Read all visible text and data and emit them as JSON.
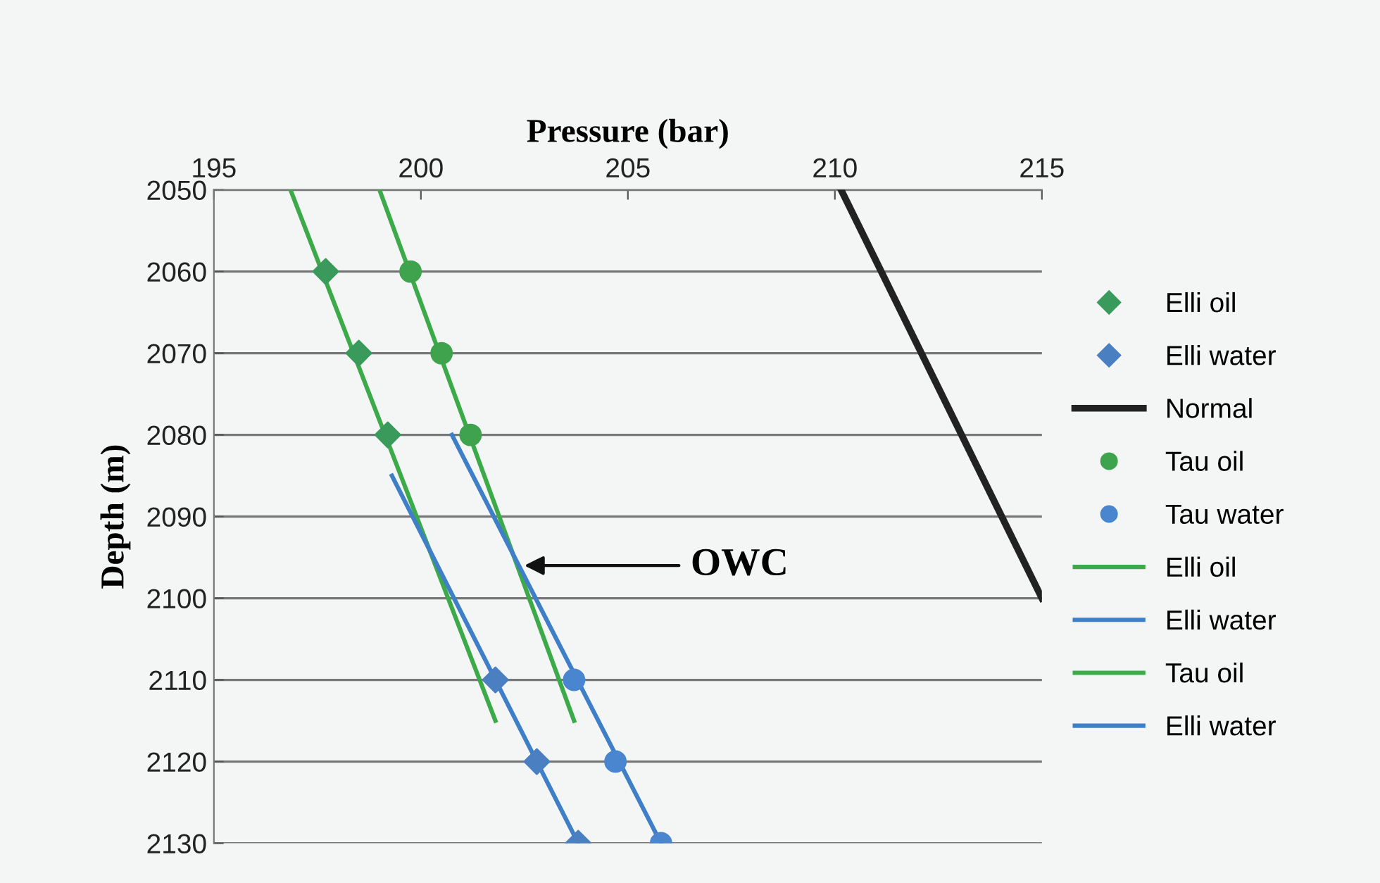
{
  "chart_data": {
    "type": "scatter",
    "xlabel": "Pressure (bar)",
    "ylabel": "Depth (m)",
    "xlim": [
      195,
      215
    ],
    "xticks": [
      195,
      200,
      205,
      210,
      215
    ],
    "ylim": [
      2130,
      2050
    ],
    "yticks": [
      2050,
      2060,
      2070,
      2080,
      2090,
      2100,
      2110,
      2120,
      2130
    ],
    "grid": "y",
    "legend": "right",
    "series": [
      {
        "name": "Elli oil",
        "marker": "diamond",
        "color": "#3a9a5c",
        "x": [
          197.7,
          198.5,
          199.2
        ],
        "values": [
          2060,
          2070,
          2080
        ]
      },
      {
        "name": "Elli water",
        "marker": "diamond",
        "color": "#4a7fc1",
        "x": [
          201.8,
          202.8,
          203.8
        ],
        "values": [
          2110,
          2120,
          2130
        ]
      },
      {
        "name": "Normal",
        "type": "line",
        "marker": "none",
        "color": "#222222",
        "x": [
          210.15,
          215
        ],
        "values": [
          2050,
          2100
        ]
      },
      {
        "name": "Tau oil",
        "marker": "circle",
        "color": "#3fa34d",
        "x": [
          199.75,
          200.5,
          201.2
        ],
        "values": [
          2060,
          2070,
          2080
        ]
      },
      {
        "name": "Tau water",
        "marker": "circle",
        "color": "#4a86cf",
        "x": [
          203.7,
          204.7,
          205.8
        ],
        "values": [
          2110,
          2120,
          2130
        ]
      },
      {
        "name": "Elli oil",
        "type": "line",
        "marker": "none",
        "color": "#3daa4a",
        "x": [
          196.85,
          201.8
        ],
        "values": [
          2050,
          2115
        ]
      },
      {
        "name": "Elli water",
        "type": "line",
        "marker": "none",
        "color": "#3f7fc8",
        "x": [
          199.3,
          203.8
        ],
        "values": [
          2085,
          2130
        ]
      },
      {
        "name": "Tau oil",
        "type": "line",
        "marker": "none",
        "color": "#3daa4a",
        "x": [
          199.0,
          203.7
        ],
        "values": [
          2050,
          2115
        ]
      },
      {
        "name": "Elli water",
        "type": "line",
        "marker": "none",
        "color": "#3f7fc8",
        "x": [
          200.75,
          205.8
        ],
        "values": [
          2080,
          2130
        ]
      }
    ],
    "annotations": [
      {
        "text": "OWC",
        "x": 202.5,
        "y": 2096
      }
    ]
  }
}
